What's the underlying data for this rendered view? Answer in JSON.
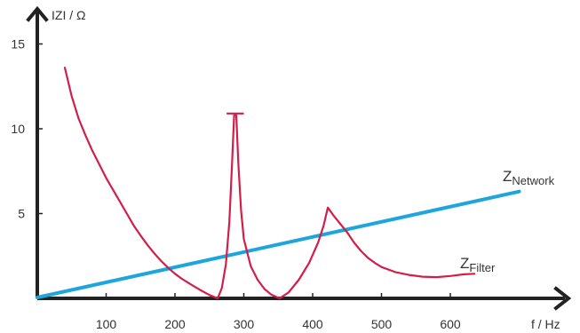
{
  "chart_data": {
    "type": "line",
    "title": "",
    "xlabel": "f / Hz",
    "ylabel": "IZI / Ω",
    "xlim": [
      0,
      700
    ],
    "ylim": [
      0,
      16
    ],
    "x_ticks": [
      100,
      200,
      300,
      400,
      500,
      600
    ],
    "y_ticks": [
      5,
      10,
      15
    ],
    "grid": false,
    "series": [
      {
        "name": "Filter",
        "label_main": "Z",
        "label_sub": "Filter",
        "color": "#d11f49",
        "points": [
          [
            40,
            13.6
          ],
          [
            50,
            11.9
          ],
          [
            60,
            10.6
          ],
          [
            70,
            9.6
          ],
          [
            80,
            8.7
          ],
          [
            90,
            7.9
          ],
          [
            100,
            7.1
          ],
          [
            110,
            6.4
          ],
          [
            120,
            5.7
          ],
          [
            130,
            5.0
          ],
          [
            140,
            4.3
          ],
          [
            150,
            3.7
          ],
          [
            160,
            3.15
          ],
          [
            170,
            2.65
          ],
          [
            180,
            2.2
          ],
          [
            190,
            1.8
          ],
          [
            200,
            1.45
          ],
          [
            210,
            1.15
          ],
          [
            220,
            0.9
          ],
          [
            230,
            0.65
          ],
          [
            240,
            0.42
          ],
          [
            250,
            0.2
          ],
          [
            262,
            0.0
          ],
          [
            268,
            0.6
          ],
          [
            274,
            2.0
          ],
          [
            279,
            4.5
          ],
          [
            283,
            8.0
          ],
          [
            286,
            10.8
          ],
          [
            289,
            10.8
          ],
          [
            292,
            8.0
          ],
          [
            296,
            5.2
          ],
          [
            300,
            3.5
          ],
          [
            310,
            1.9
          ],
          [
            320,
            1.1
          ],
          [
            330,
            0.55
          ],
          [
            340,
            0.22
          ],
          [
            352,
            0.0
          ],
          [
            365,
            0.35
          ],
          [
            380,
            1.1
          ],
          [
            395,
            2.1
          ],
          [
            408,
            3.3
          ],
          [
            416,
            4.3
          ],
          [
            422,
            5.35
          ],
          [
            430,
            4.9
          ],
          [
            440,
            4.4
          ],
          [
            450,
            3.9
          ],
          [
            460,
            3.3
          ],
          [
            470,
            2.8
          ],
          [
            480,
            2.4
          ],
          [
            490,
            2.1
          ],
          [
            500,
            1.85
          ],
          [
            520,
            1.55
          ],
          [
            540,
            1.38
          ],
          [
            560,
            1.28
          ],
          [
            580,
            1.25
          ],
          [
            600,
            1.32
          ],
          [
            620,
            1.42
          ],
          [
            635,
            1.45
          ]
        ]
      },
      {
        "name": "Network",
        "label_main": "Z",
        "label_sub": "Network",
        "color": "#1ea6dc",
        "points": [
          [
            0,
            0.05
          ],
          [
            700,
            6.3
          ]
        ]
      }
    ],
    "annotations": [
      {
        "type": "cap",
        "x_range": [
          275,
          300
        ],
        "y": 10.9,
        "color": "#d11f49"
      }
    ]
  }
}
